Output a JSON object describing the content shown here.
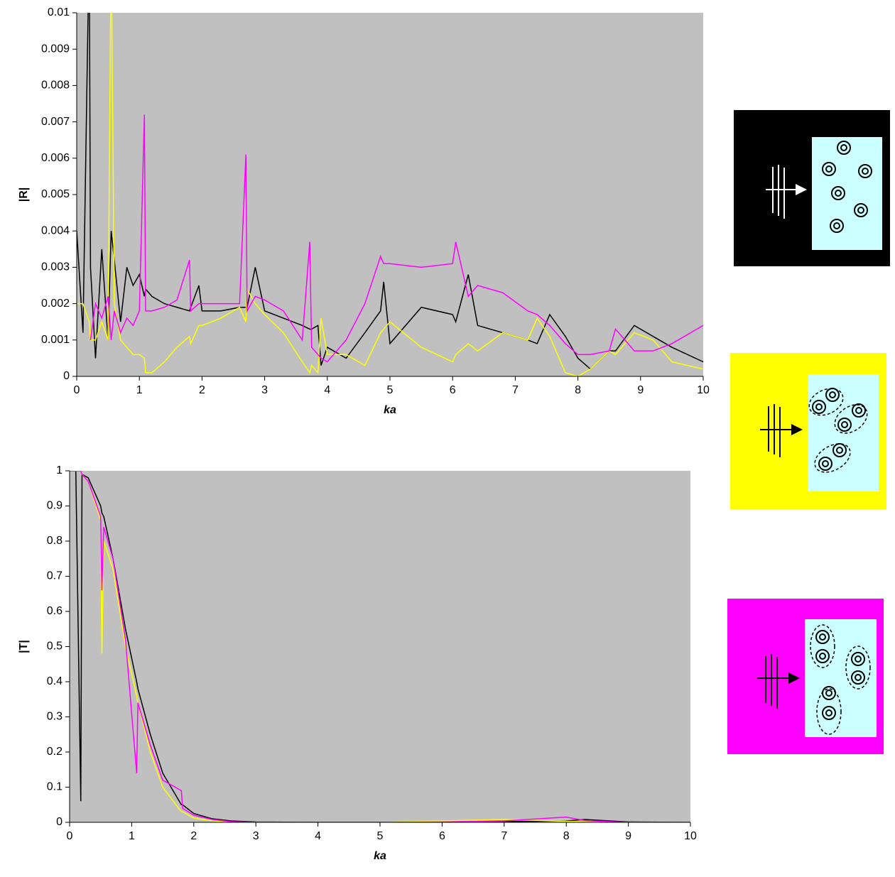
{
  "chart_data": [
    {
      "type": "line",
      "x_label": "ka",
      "y_label": "|R|",
      "xlim": [
        0,
        10
      ],
      "xticks": [
        0,
        1,
        2,
        3,
        4,
        5,
        6,
        7,
        8,
        9,
        10
      ],
      "ylim": [
        0,
        0.01
      ],
      "yticks": [
        0,
        0.001,
        0.002,
        0.003,
        0.004,
        0.005,
        0.006,
        0.007,
        0.008,
        0.009,
        0.01
      ],
      "x": [
        0,
        0.1,
        0.2,
        0.22,
        0.3,
        0.4,
        0.5,
        0.55,
        0.6,
        0.7,
        0.8,
        0.9,
        1.0,
        1.08,
        1.1,
        1.2,
        1.4,
        1.6,
        1.8,
        1.82,
        1.95,
        2.0,
        2.3,
        2.6,
        2.7,
        2.72,
        2.85,
        3.0,
        3.3,
        3.6,
        3.72,
        3.75,
        3.85,
        3.9,
        4.0,
        4.3,
        4.6,
        4.85,
        4.9,
        5.0,
        5.5,
        6.0,
        6.05,
        6.25,
        6.4,
        6.8,
        7.2,
        7.35,
        7.55,
        7.8,
        8.0,
        8.2,
        8.5,
        8.6,
        8.9,
        9.2,
        9.5,
        10
      ],
      "series": [
        {
          "color": "#000000",
          "values": [
            0.004,
            0.0012,
            0.012,
            0.003,
            0.0005,
            0.0035,
            0.001,
            0.004,
            0.0032,
            0.0015,
            0.003,
            0.0025,
            0.0028,
            0.0022,
            0.0024,
            0.0022,
            0.002,
            0.0019,
            0.0018,
            0.0019,
            0.0025,
            0.0018,
            0.0018,
            0.0019,
            0.0019,
            0.0019,
            0.003,
            0.0018,
            0.0016,
            0.0014,
            0.0013,
            0.0013,
            0.0014,
            0.0003,
            0.0008,
            0.0005,
            0.0012,
            0.0018,
            0.0026,
            0.0009,
            0.0019,
            0.0017,
            0.0015,
            0.0028,
            0.0014,
            0.0012,
            0.001,
            0.0009,
            0.0017,
            0.0011,
            0.0005,
            0.0002,
            0.0007,
            0.0007,
            0.0014,
            0.0011,
            0.0008,
            0.0004
          ]
        },
        {
          "color": "#ffff00",
          "values": [
            0.002,
            0.002,
            0.0015,
            0.001,
            0.001,
            0.0015,
            0.001,
            0.012,
            0.002,
            0.001,
            0.0008,
            0.0006,
            0.0006,
            0.0005,
            0.0001,
            0.0001,
            0.0004,
            0.0008,
            0.0011,
            0.0009,
            0.0014,
            0.0014,
            0.0016,
            0.0019,
            0.0015,
            0.0024,
            0.002,
            0.0017,
            0.0012,
            0.0004,
            0.0001,
            0.0003,
            0.0001,
            0.0016,
            0.0006,
            0.0006,
            0.0003,
            0.0012,
            0.0013,
            0.0015,
            0.0008,
            0.0004,
            0.0006,
            0.0009,
            0.0007,
            0.0012,
            0.001,
            0.0016,
            0.0011,
            0.0001,
            0,
            0.0002,
            0.0007,
            0.0006,
            0.0012,
            0.001,
            0.0004,
            0.0002
          ]
        },
        {
          "color": "#ff00ff",
          "values": [
            null,
            null,
            null,
            0.001,
            0.002,
            0.0016,
            0.0022,
            0.001,
            0.0018,
            0.0012,
            0.0016,
            0.0014,
            0.0018,
            0.0072,
            0.0018,
            0.0018,
            0.0019,
            0.0021,
            0.0032,
            0.0018,
            0.002,
            0.002,
            0.002,
            0.002,
            0.0061,
            0.0018,
            0.0022,
            0.0021,
            0.0018,
            0.001,
            0.0037,
            0.0008,
            0.0006,
            0.0005,
            0.0004,
            0.001,
            0.002,
            0.0033,
            0.0031,
            0.0031,
            0.003,
            0.0031,
            0.0037,
            0.0022,
            0.0025,
            0.0023,
            0.0018,
            0.0017,
            0.0014,
            0.0009,
            0.0006,
            0.0006,
            0.0007,
            0.0013,
            0.0007,
            0.0007,
            0.0009,
            0.0014
          ]
        }
      ]
    },
    {
      "type": "line",
      "x_label": "ka",
      "y_label": "|T|",
      "xlim": [
        0,
        10
      ],
      "xticks": [
        0,
        1,
        2,
        3,
        4,
        5,
        6,
        7,
        8,
        9,
        10
      ],
      "ylim": [
        0,
        1
      ],
      "yticks": [
        0,
        0.1,
        0.2,
        0.3,
        0.4,
        0.5,
        0.6,
        0.7,
        0.8,
        0.9,
        1
      ],
      "x": [
        0,
        0.1,
        0.18,
        0.2,
        0.3,
        0.5,
        0.52,
        0.55,
        0.7,
        0.9,
        1.08,
        1.1,
        1.3,
        1.5,
        1.8,
        1.82,
        2.0,
        2.3,
        2.6,
        3,
        4,
        5,
        6,
        7,
        8,
        8.3,
        9,
        10
      ],
      "series": [
        {
          "color": "#000000",
          "values": [
            1,
            1,
            0.06,
            0.99,
            0.98,
            0.9,
            0.88,
            0.87,
            0.75,
            0.55,
            0.4,
            0.38,
            0.25,
            0.14,
            0.05,
            0.05,
            0.025,
            0.01,
            0.004,
            0.001,
            0,
            0,
            0,
            0.002,
            0.004,
            0.008,
            0.001,
            0
          ]
        },
        {
          "color": "#ffff00",
          "values": [
            1,
            1,
            1,
            0.99,
            0.97,
            0.86,
            0.48,
            0.8,
            0.72,
            0.5,
            0.36,
            0.34,
            0.2,
            0.1,
            0.03,
            0.03,
            0.012,
            0.004,
            0.001,
            0,
            0,
            0,
            0.004,
            0.008,
            0.003,
            0.002,
            0,
            0
          ]
        },
        {
          "color": "#ff00ff",
          "values": [
            1,
            1,
            1,
            0.99,
            0.97,
            0.87,
            0.66,
            0.84,
            0.75,
            0.52,
            0.14,
            0.34,
            0.22,
            0.12,
            0.09,
            0.04,
            0.02,
            0.008,
            0.002,
            0,
            0,
            0,
            0.001,
            0.004,
            0.015,
            0.005,
            0,
            0
          ]
        }
      ]
    }
  ]
}
